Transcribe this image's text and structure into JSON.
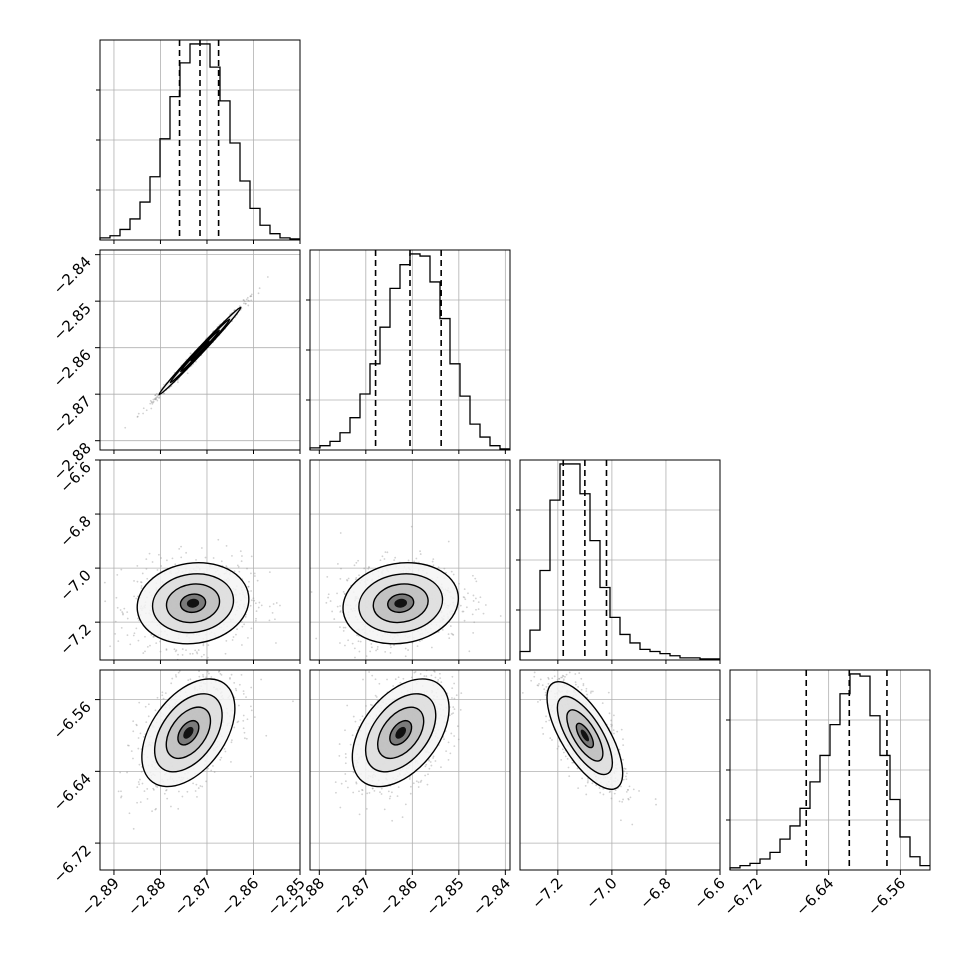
{
  "chart_data": {
    "type": "corner",
    "grid": true,
    "params": [
      {
        "range": [
          -2.893,
          -2.85
        ],
        "hist_ticks": [
          "-2.89",
          "-2.88",
          "-2.87",
          "-2.86",
          "-2.85"
        ],
        "hist_tick_values": [
          -2.89,
          -2.88,
          -2.87,
          -2.86,
          -2.85
        ],
        "y_ticks": [],
        "y_tick_values": []
      },
      {
        "range": [
          -2.882,
          -2.839
        ],
        "hist_ticks": [
          "-2.88",
          "-2.87",
          "-2.86",
          "-2.85",
          "-2.84"
        ],
        "hist_tick_values": [
          -2.88,
          -2.87,
          -2.86,
          -2.85,
          -2.84
        ],
        "y_ticks": [
          "-2.84",
          "-2.85",
          "-2.86",
          "-2.87",
          "-2.88"
        ],
        "y_tick_values": [
          -2.84,
          -2.85,
          -2.86,
          -2.87,
          -2.88
        ]
      },
      {
        "range": [
          -7.34,
          -6.6
        ],
        "hist_ticks": [
          "-7.2",
          "-7.0",
          "-6.8",
          "-6.6"
        ],
        "hist_tick_values": [
          -7.2,
          -7.0,
          -6.8,
          -6.6
        ],
        "y_ticks": [
          "-6.6",
          "-6.8",
          "-7.0",
          "-7.2"
        ],
        "y_tick_values": [
          -6.6,
          -6.8,
          -7.0,
          -7.2
        ]
      },
      {
        "range": [
          -6.75,
          -6.527
        ],
        "hist_ticks": [
          "-6.72",
          "-6.64",
          "-6.56"
        ],
        "hist_tick_values": [
          -6.72,
          -6.64,
          -6.56
        ],
        "y_ticks": [
          "-6.56",
          "-6.64",
          "-6.72"
        ],
        "y_tick_values": [
          -6.56,
          -6.64,
          -6.72
        ]
      }
    ],
    "histograms": [
      {
        "values": [
          1,
          2,
          5,
          10,
          18,
          30,
          48,
          68,
          84,
          93,
          93,
          82,
          66,
          46,
          28,
          15,
          7,
          3,
          1,
          0.5
        ],
        "quantiles": [
          -2.8759,
          -2.8715,
          -2.8675
        ]
      },
      {
        "values": [
          1,
          2,
          4,
          8,
          15,
          26,
          40,
          57,
          75,
          86,
          91,
          90,
          78,
          61,
          40,
          25,
          12,
          6,
          2,
          0.5
        ],
        "quantiles": [
          -2.8679,
          -2.8605,
          -2.8538
        ]
      },
      {
        "values": [
          4,
          14,
          42,
          75,
          92,
          92,
          78,
          56,
          34,
          20,
          12,
          8,
          5,
          4,
          3,
          2,
          1,
          1,
          0.5,
          0.5
        ],
        "quantiles": [
          -7.18,
          -7.1,
          -7.02
        ]
      },
      {
        "values": [
          1,
          2,
          3,
          5,
          8,
          14,
          20,
          28,
          40,
          52,
          66,
          80,
          89,
          88,
          70,
          52,
          32,
          15,
          6,
          2
        ],
        "quantiles": [
          -6.665,
          -6.617,
          -6.575
        ]
      }
    ],
    "joints": [
      {
        "x_param": 0,
        "y_param": 1,
        "center": [
          -2.8715,
          -2.8607
        ],
        "sigma": [
          0.0044,
          0.0047
        ],
        "rho": 0.995
      },
      {
        "x_param": 0,
        "y_param": 2,
        "center": [
          -2.873,
          -7.13
        ],
        "sigma": [
          0.006,
          0.075
        ],
        "rho": 0.1
      },
      {
        "x_param": 1,
        "y_param": 2,
        "center": [
          -2.8625,
          -7.13
        ],
        "sigma": [
          0.0062,
          0.075
        ],
        "rho": 0.12
      },
      {
        "x_param": 0,
        "y_param": 3,
        "center": [
          -2.874,
          -6.597
        ],
        "sigma": [
          0.005,
          0.03
        ],
        "rho": 0.45
      },
      {
        "x_param": 1,
        "y_param": 3,
        "center": [
          -2.8625,
          -6.597
        ],
        "sigma": [
          0.0052,
          0.03
        ],
        "rho": 0.45
      },
      {
        "x_param": 2,
        "y_param": 3,
        "center": [
          -7.1,
          -6.6
        ],
        "sigma": [
          0.07,
          0.03
        ],
        "rho": -0.7
      }
    ],
    "colors": {
      "line": "#000000",
      "grid": "#b0b0b0",
      "points": "#9a9a9a",
      "fill": "#d8d8d8"
    }
  }
}
